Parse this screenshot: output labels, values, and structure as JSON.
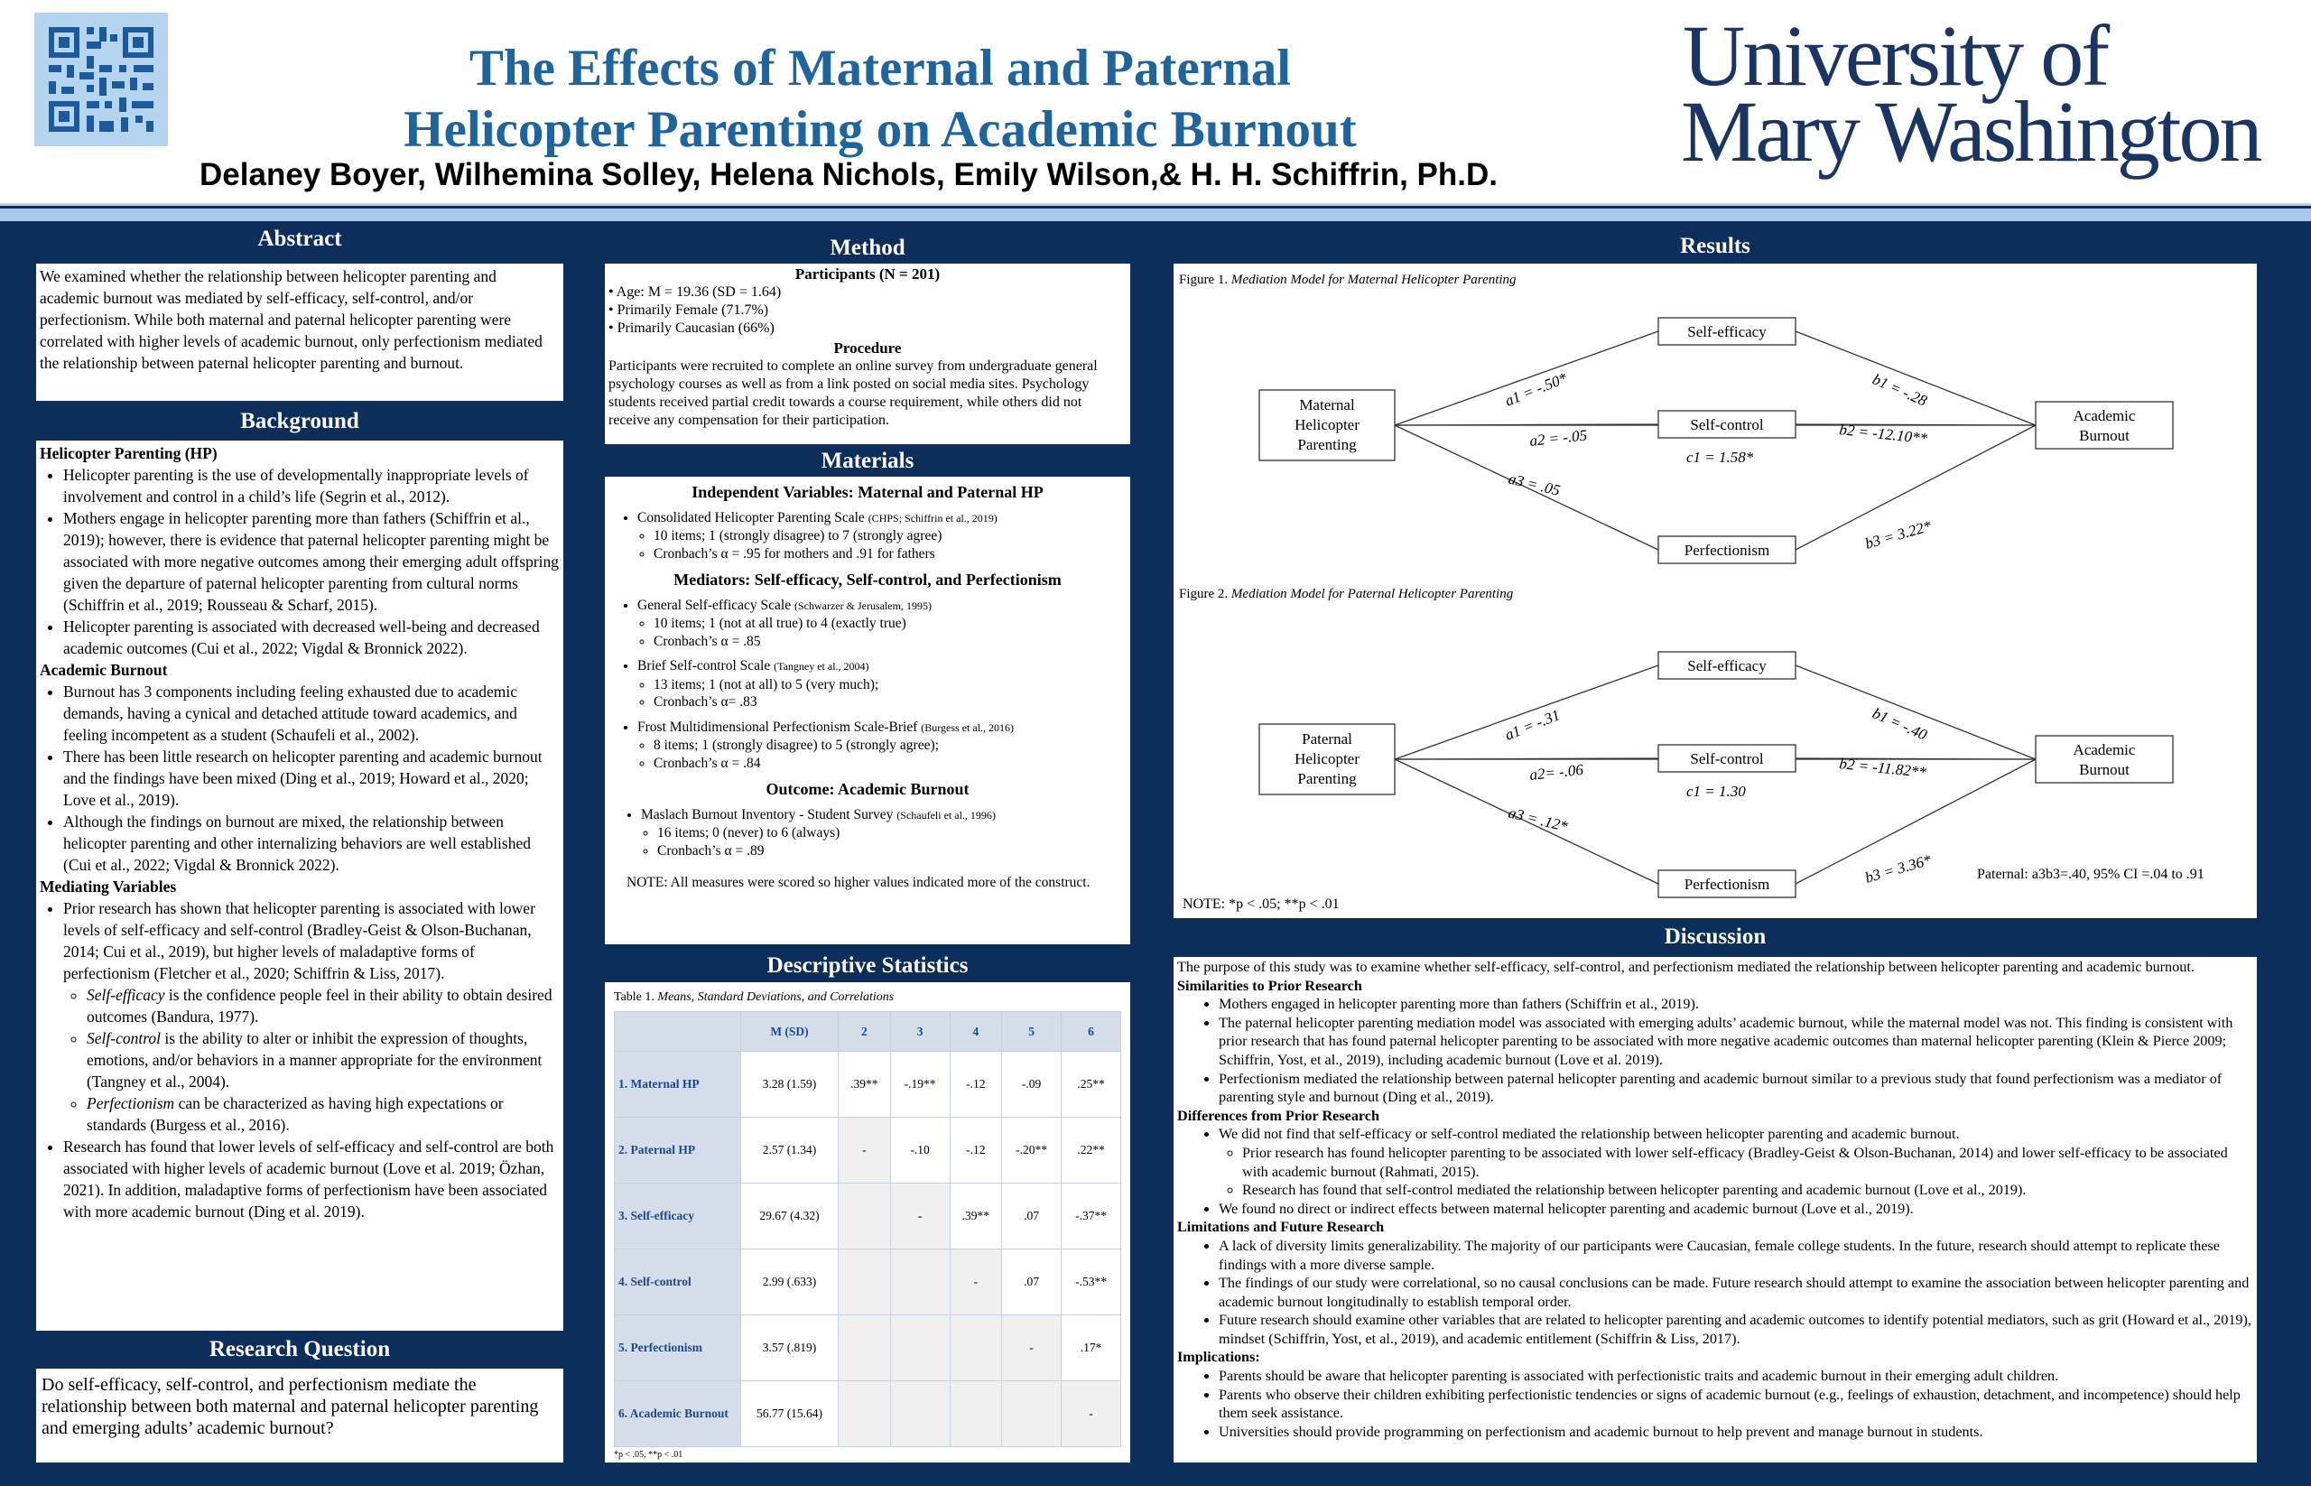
{
  "header": {
    "title_line1": "The Effects of Maternal and Paternal",
    "title_line2": "Helicopter Parenting on Academic Burnout",
    "authors": "Delaney Boyer, Wilhemina Solley, Helena Nichols, Emily Wilson,& H. H. Schiffrin, Ph.D.",
    "logo_line1": "University of",
    "logo_line2": "Mary Washington",
    "qr_icon": "qr-code-icon"
  },
  "abstract": {
    "heading": "Abstract",
    "text": "We examined whether the relationship between helicopter parenting and academic burnout was mediated by self-efficacy, self-control, and/or perfectionism. While both maternal and paternal helicopter parenting were correlated with higher levels of academic burnout, only perfectionism mediated the relationship between paternal helicopter parenting and burnout."
  },
  "background": {
    "heading": "Background",
    "hp_title": "Helicopter Parenting (HP)",
    "hp_items": [
      "Helicopter parenting is the use of developmentally inappropriate levels of involvement and control in a child’s life (Segrin et al., 2012).",
      "Mothers engage in helicopter parenting more than fathers (Schiffrin et al., 2019); however, there is evidence that paternal helicopter parenting might be associated with more negative outcomes among their emerging adult offspring given the departure of paternal helicopter parenting from cultural norms (Schiffrin et al., 2019; Rousseau & Scharf, 2015).",
      "Helicopter parenting is associated with decreased well-being and decreased academic outcomes (Cui et al., 2022; Vigdal & Bronnick 2022)."
    ],
    "ab_title": "Academic Burnout",
    "ab_items": [
      "Burnout has 3 components including feeling exhausted due to academic demands, having a cynical and detached attitude toward academics, and feeling incompetent as a student (Schaufeli et al., 2002).",
      "There has been little research on helicopter parenting and academic burnout and the findings have been mixed (Ding et al., 2019; Howard et al., 2020; Love et al., 2019).",
      "Although the findings on burnout are mixed, the relationship between helicopter parenting and other internalizing behaviors are well established (Cui et al., 2022; Vigdal & Bronnick 2022)."
    ],
    "mv_title": "Mediating Variables",
    "mv_item1": "Prior research has shown that helicopter parenting is associated with lower levels of self-efficacy and self-control (Bradley-Geist & Olson-Buchanan, 2014; Cui et al., 2019), but higher levels of maladaptive forms of perfectionism (Fletcher et al., 2020; Schiffrin & Liss, 2017).",
    "mv_sub": [
      {
        "term": "Self-efficacy",
        "text": " is the confidence people feel in their ability to obtain desired outcomes (Bandura, 1977)."
      },
      {
        "term": "Self-control",
        "text": " is the ability to alter or inhibit the expression of thoughts, emotions, and/or behaviors in a manner appropriate for the environment (Tangney et al., 2004)."
      },
      {
        "term": "Perfectionism",
        "text": " can be characterized as having high expectations or standards (Burgess et al., 2016)."
      }
    ],
    "mv_item2": "Research has found that lower levels of self-efficacy and self-control are both associated with higher levels of academic burnout (Love et al. 2019; Özhan, 2021). In addition, maladaptive forms of perfectionism have been associated with more academic burnout (Ding et al. 2019)."
  },
  "research_question": {
    "heading": "Research Question",
    "text": "Do self-efficacy, self-control, and perfectionism mediate the relationship between both maternal and paternal helicopter parenting and emerging adults’ academic burnout?"
  },
  "method": {
    "heading": "Method",
    "participants_title": "Participants (N = 201)",
    "participants": [
      "Age: M = 19.36 (SD = 1.64)",
      "Primarily Female (71.7%)",
      "Primarily Caucasian (66%)"
    ],
    "procedure_title": "Procedure",
    "procedure": "Participants were recruited to complete an online survey from undergraduate general psychology courses as well as from a link posted on social media sites. Psychology students received partial credit towards a course requirement, while others did not receive any compensation for their participation."
  },
  "materials": {
    "heading": "Materials",
    "iv_title": "Independent Variables: Maternal and Paternal HP",
    "chps": "Consolidated Helicopter Parenting Scale",
    "chps_cite": "(CHPS; Schiffrin et al., 2019)",
    "chps_items": [
      "10 items; 1 (strongly disagree) to 7 (strongly agree)",
      "Cronbach’s α = .95 for mothers and .91 for fathers"
    ],
    "med_title": "Mediators: Self-efficacy, Self-control, and Perfectionism",
    "gse": "General Self-efficacy Scale",
    "gse_cite": "(Schwarzer & Jerusalem, 1995)",
    "gse_items": [
      "10 items; 1 (not at all true) to 4 (exactly true)",
      "Cronbach’s α = .85"
    ],
    "bsc": "Brief Self-control Scale",
    "bsc_cite": "(Tangney et al., 2004)",
    "bsc_items": [
      "13 items; 1 (not at all) to 5 (very much);",
      "Cronbach’s α= .83"
    ],
    "fmps": "Frost Multidimensional Perfectionism Scale-Brief",
    "fmps_cite": "(Burgess et al., 2016)",
    "fmps_items": [
      "8 items; 1 (strongly disagree) to 5 (strongly agree);",
      "Cronbach’s α = .84"
    ],
    "out_title": "Outcome: Academic Burnout",
    "mbi": "Maslach Burnout Inventory - Student Survey",
    "mbi_cite": "(Schaufeli et al., 1996)",
    "mbi_items": [
      "16 items; 0 (never) to 6 (always)",
      "Cronbach’s α = .89"
    ],
    "note": "NOTE: All measures were scored so higher values indicated more of the construct."
  },
  "descriptives": {
    "heading": "Descriptive Statistics",
    "caption_prefix": "Table 1.",
    "caption": "Means, Standard Deviations, and Correlations",
    "columns": [
      "",
      "M (SD)",
      "2",
      "3",
      "4",
      "5",
      "6"
    ],
    "rows": [
      [
        "1. Maternal HP",
        "3.28 (1.59)",
        ".39**",
        "-.19**",
        "-.12",
        "-.09",
        ".25**"
      ],
      [
        "2. Paternal HP",
        "2.57 (1.34)",
        "-",
        "-.10",
        "-.12",
        "-.20**",
        ".22**"
      ],
      [
        "3. Self-efficacy",
        "29.67 (4.32)",
        "",
        "-",
        ".39**",
        ".07",
        "-.37**"
      ],
      [
        "4. Self-control",
        "2.99 (.633)",
        "",
        "",
        "-",
        ".07",
        "-.53**"
      ],
      [
        "5. Perfectionism",
        "3.57 (.819)",
        "",
        "",
        "",
        "-",
        ".17*"
      ],
      [
        "6. Academic Burnout",
        "56.77 (15.64)",
        "",
        "",
        "",
        "",
        "-"
      ]
    ],
    "footnote": "*p < .05, **p < .01"
  },
  "results": {
    "heading": "Results",
    "fig1_prefix": "Figure 1.",
    "fig1_caption": "Mediation Model for Maternal Helicopter Parenting",
    "fig1": {
      "predictor": [
        "Maternal",
        "Helicopter",
        "Parenting"
      ],
      "m1": "Self-efficacy",
      "m2": "Self-control",
      "m3": "Perfectionism",
      "outcome": [
        "Academic",
        "Burnout"
      ],
      "a1": "a1 = -.50*",
      "a2": "a2 = -.05",
      "a3": "a3 = .05",
      "b1": "b1 = -.28",
      "b2": "b2 = -12.10**",
      "b3": "b3 = 3.22*",
      "c": "c1 = 1.58*"
    },
    "fig2_prefix": "Figure 2.",
    "fig2_caption": "Mediation Model for Paternal Helicopter Parenting",
    "fig2": {
      "predictor": [
        "Paternal",
        "Helicopter",
        "Parenting"
      ],
      "m1": "Self-efficacy",
      "m2": "Self-control",
      "m3": "Perfectionism",
      "outcome": [
        "Academic",
        "Burnout"
      ],
      "a1": "a1 = -.31",
      "a2": "a2= -.06",
      "a3": "a3 = .12*",
      "b1": "b1 = -.40",
      "b2": "b2 = -11.82**",
      "b3": "b3 = 3.36*",
      "c": "c1 = 1.30"
    },
    "indirect": "Paternal: a3b3=.40, 95% CI =.04 to .91",
    "note": "NOTE: *p < .05; **p < .01"
  },
  "discussion": {
    "heading": "Discussion",
    "intro": "The purpose of this study was to examine whether self-efficacy, self-control, and perfectionism mediated the relationship between helicopter parenting and academic burnout.",
    "sim_title": "Similarities to Prior Research",
    "sim_items": [
      "Mothers engaged in helicopter parenting more than fathers (Schiffrin et al., 2019).",
      "The paternal helicopter parenting mediation model was associated with emerging adults’ academic burnout, while the maternal model was not. This finding is consistent with prior research that has found paternal helicopter parenting to be associated with more negative academic outcomes than maternal helicopter parenting (Klein & Pierce 2009; Schiffrin, Yost, et al., 2019), including academic burnout (Love et al. 2019).",
      "Perfectionism mediated the relationship between paternal helicopter parenting and academic burnout similar to a previous study that found perfectionism was a mediator of parenting style and burnout (Ding et al., 2019)."
    ],
    "diff_title": "Differences from Prior Research",
    "diff_item1": "We did not find that self-efficacy or self-control mediated the relationship between helicopter parenting and academic burnout.",
    "diff_sub": [
      "Prior research has found helicopter parenting to be associated with lower self-efficacy (Bradley-Geist & Olson-Buchanan, 2014) and lower self-efficacy to be associated with academic burnout (Rahmati, 2015).",
      "Research has found that self-control mediated the relationship between helicopter parenting and academic burnout (Love et al., 2019)."
    ],
    "diff_item2": "We found no direct or indirect effects between maternal helicopter parenting and academic burnout (Love et al., 2019).",
    "lim_title": "Limitations and Future Research",
    "lim_items": [
      "A lack of diversity limits generalizability. The majority of our participants were Caucasian, female college students. In the future, research should attempt to replicate these findings with a more diverse sample.",
      "The findings of our study were correlational, so no causal conclusions can be made. Future research should attempt to examine the association between helicopter parenting and academic burnout longitudinally to establish temporal order.",
      "Future research should examine other variables that are related to helicopter parenting and academic outcomes to identify potential mediators, such as grit (Howard et al., 2019), mindset (Schiffrin, Yost, et al., 2019), and academic entitlement (Schiffrin & Liss, 2017)."
    ],
    "imp_title": "Implications:",
    "imp_items": [
      "Parents should be aware that helicopter parenting is associated with perfectionistic traits and academic burnout in their emerging adult children.",
      "Parents who observe their children exhibiting perfectionistic tendencies or signs of academic burnout (e.g., feelings of exhaustion, detachment, and incompetence) should help them seek assistance.",
      "Universities should provide programming on perfectionism and academic burnout to help prevent and manage burnout in students."
    ]
  }
}
